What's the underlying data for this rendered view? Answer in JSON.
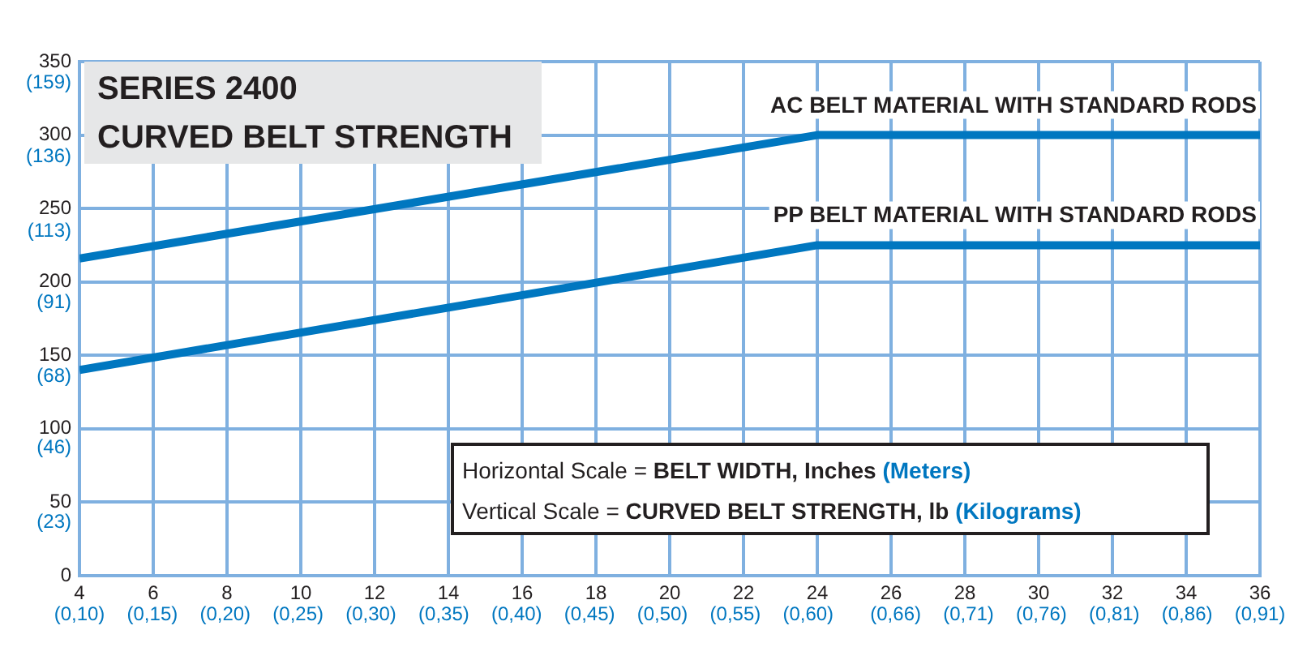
{
  "chart_data": {
    "type": "line",
    "title": "SERIES 2400",
    "subtitle": "CURVED BELT STRENGTH",
    "xlabel": "Horizontal Scale = BELT WIDTH, Inches (Meters)",
    "ylabel": "Vertical Scale = CURVED BELT STRENGTH, lb (Kilograms)",
    "x": [
      4,
      24,
      36
    ],
    "series": [
      {
        "name": "AC BELT MATERIAL WITH STANDARD RODS",
        "color": "#0077c0",
        "values": [
          216,
          300,
          300
        ]
      },
      {
        "name": "PP BELT MATERIAL WITH STANDARD RODS",
        "color": "#0077c0",
        "values": [
          140,
          225,
          225
        ]
      }
    ],
    "xlim": [
      4,
      36
    ],
    "xticks": [
      4,
      6,
      8,
      10,
      12,
      14,
      16,
      18,
      20,
      22,
      24,
      26,
      28,
      30,
      32,
      34,
      36
    ],
    "x2lim": [
      0.1,
      0.91
    ],
    "x2ticks": [
      {
        "value": 0.1,
        "label": "(0,10)"
      },
      {
        "value": 0.15,
        "label": "(0,15)"
      },
      {
        "value": 0.2,
        "label": "(0,20)"
      },
      {
        "value": 0.25,
        "label": "(0,25)"
      },
      {
        "value": 0.3,
        "label": "(0,30)"
      },
      {
        "value": 0.35,
        "label": "(0,35)"
      },
      {
        "value": 0.4,
        "label": "(0,40)"
      },
      {
        "value": 0.45,
        "label": "(0,45)"
      },
      {
        "value": 0.5,
        "label": "(0,50)"
      },
      {
        "value": 0.55,
        "label": "(0,55)"
      },
      {
        "value": 0.6,
        "label": "(0,60)"
      },
      {
        "value": 0.66,
        "label": "(0,66)"
      },
      {
        "value": 0.71,
        "label": "(0,71)"
      },
      {
        "value": 0.76,
        "label": "(0,76)"
      },
      {
        "value": 0.81,
        "label": "(0,81)"
      },
      {
        "value": 0.86,
        "label": "(0,86)"
      },
      {
        "value": 0.91,
        "label": "(0,91)"
      }
    ],
    "ylim": [
      0,
      350
    ],
    "yticks": [
      0,
      50,
      100,
      150,
      200,
      250,
      300,
      350
    ],
    "y2lim": [
      0,
      159
    ],
    "y2ticks": [
      {
        "value": 23,
        "label": "(23)"
      },
      {
        "value": 46,
        "label": "(46)"
      },
      {
        "value": 68,
        "label": "(68)"
      },
      {
        "value": 91,
        "label": "(91)"
      },
      {
        "value": 113,
        "label": "(113)"
      },
      {
        "value": 136,
        "label": "(136)"
      },
      {
        "value": 159,
        "label": "(159)"
      }
    ],
    "grid": true,
    "legend": false,
    "marker": "none",
    "line_style": "solid"
  }
}
